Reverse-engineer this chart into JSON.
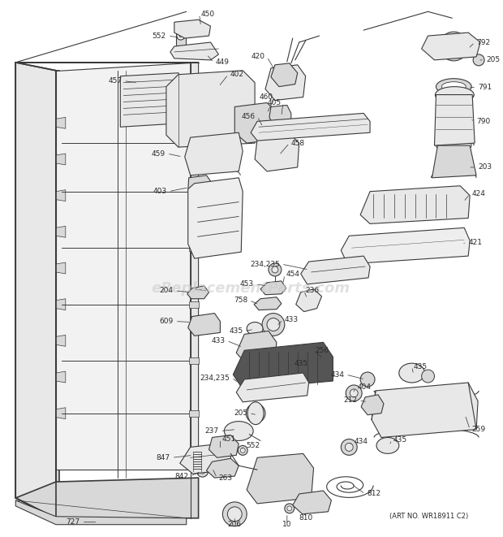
{
  "background_color": "#ffffff",
  "watermark_text": "eReplacementParts.com",
  "art_no_text": "(ART NO. WR18911 C2)",
  "lc": "#3a3a3a",
  "tc": "#2a2a2a",
  "fc_light": "#e8e8e8",
  "fc_mid": "#d8d8d8",
  "fc_dark": "#c8c8c8"
}
